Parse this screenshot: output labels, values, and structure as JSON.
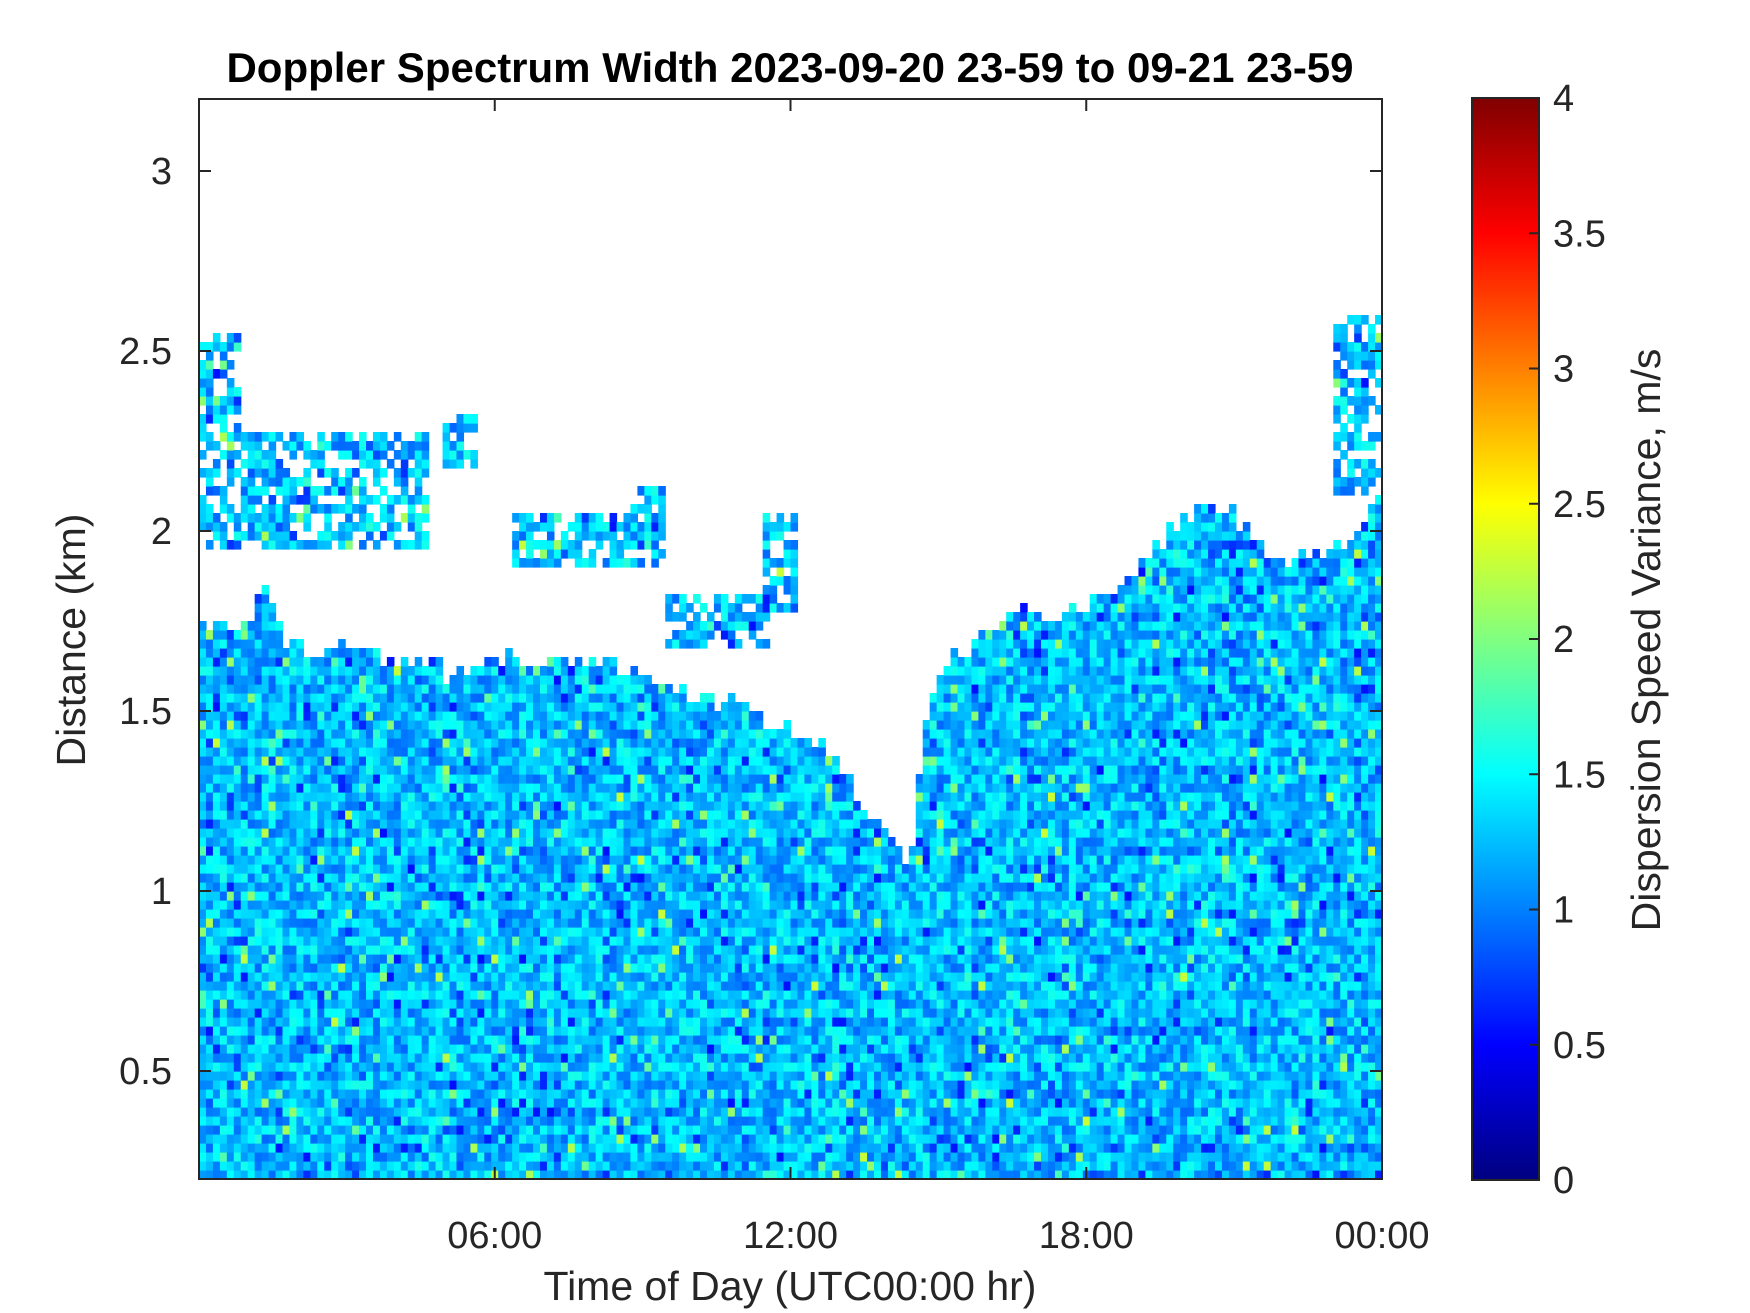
{
  "chart_data": {
    "type": "heatmap",
    "title": "Doppler Spectrum Width 2023-09-20 23-59 to 09-21 23-59",
    "xlabel": "Time of Day (UTC00:00 hr)",
    "ylabel": "Distance (km)",
    "colorbar_label": "Dispersion Speed Variance, m/s",
    "colormap": "jet",
    "x_range_hours": [
      0,
      24
    ],
    "x_ticks": [
      {
        "value": 6,
        "label": "06:00"
      },
      {
        "value": 12,
        "label": "12:00"
      },
      {
        "value": 18,
        "label": "18:00"
      },
      {
        "value": 24,
        "label": "00:00"
      }
    ],
    "ylim": [
      0.2,
      3.2
    ],
    "y_ticks": [
      {
        "value": 0.5,
        "label": "0.5"
      },
      {
        "value": 1,
        "label": "1"
      },
      {
        "value": 1.5,
        "label": "1.5"
      },
      {
        "value": 2,
        "label": "2"
      },
      {
        "value": 2.5,
        "label": "2.5"
      },
      {
        "value": 3,
        "label": "3"
      }
    ],
    "clim": [
      0,
      4
    ],
    "colorbar_ticks": [
      {
        "value": 0,
        "label": "0"
      },
      {
        "value": 0.5,
        "label": "0.5"
      },
      {
        "value": 1,
        "label": "1"
      },
      {
        "value": 1.5,
        "label": "1.5"
      },
      {
        "value": 2,
        "label": "2"
      },
      {
        "value": 2.5,
        "label": "2.5"
      },
      {
        "value": 3,
        "label": "3"
      },
      {
        "value": 3.5,
        "label": "3.5"
      },
      {
        "value": 4,
        "label": "4"
      }
    ],
    "typical_value": 1.25,
    "signal_top_km": [
      [
        0.0,
        1.75
      ],
      [
        1.0,
        1.72
      ],
      [
        1.3,
        1.85
      ],
      [
        1.5,
        1.78
      ],
      [
        1.8,
        1.68
      ],
      [
        3.0,
        1.66
      ],
      [
        4.5,
        1.63
      ],
      [
        5.5,
        1.6
      ],
      [
        6.5,
        1.66
      ],
      [
        8.0,
        1.64
      ],
      [
        9.0,
        1.58
      ],
      [
        10.0,
        1.56
      ],
      [
        11.0,
        1.52
      ],
      [
        12.0,
        1.44
      ],
      [
        12.8,
        1.38
      ],
      [
        13.6,
        1.22
      ],
      [
        14.4,
        1.06
      ],
      [
        14.8,
        1.55
      ],
      [
        15.5,
        1.68
      ],
      [
        16.5,
        1.76
      ],
      [
        17.5,
        1.77
      ],
      [
        18.5,
        1.82
      ],
      [
        19.5,
        1.97
      ],
      [
        20.5,
        2.08
      ],
      [
        21.0,
        2.05
      ],
      [
        21.6,
        1.95
      ],
      [
        22.5,
        1.92
      ],
      [
        23.3,
        1.97
      ],
      [
        24.0,
        2.1
      ]
    ],
    "upper_cloud_layers": [
      {
        "x_start": 0.0,
        "x_end": 4.7,
        "bottom_km": 1.95,
        "top_km": 2.28
      },
      {
        "x_start": 0.0,
        "x_end": 0.8,
        "bottom_km": 2.28,
        "top_km": 2.55
      },
      {
        "x_start": 5.0,
        "x_end": 5.7,
        "bottom_km": 2.18,
        "top_km": 2.32
      },
      {
        "x_start": 6.3,
        "x_end": 9.5,
        "bottom_km": 1.9,
        "top_km": 2.05
      },
      {
        "x_start": 8.8,
        "x_end": 9.5,
        "bottom_km": 1.98,
        "top_km": 2.12
      },
      {
        "x_start": 9.5,
        "x_end": 11.6,
        "bottom_km": 1.68,
        "top_km": 1.82
      },
      {
        "x_start": 11.4,
        "x_end": 12.1,
        "bottom_km": 1.78,
        "top_km": 2.05
      },
      {
        "x_start": 23.0,
        "x_end": 24.0,
        "bottom_km": 2.1,
        "top_km": 2.6
      }
    ]
  }
}
